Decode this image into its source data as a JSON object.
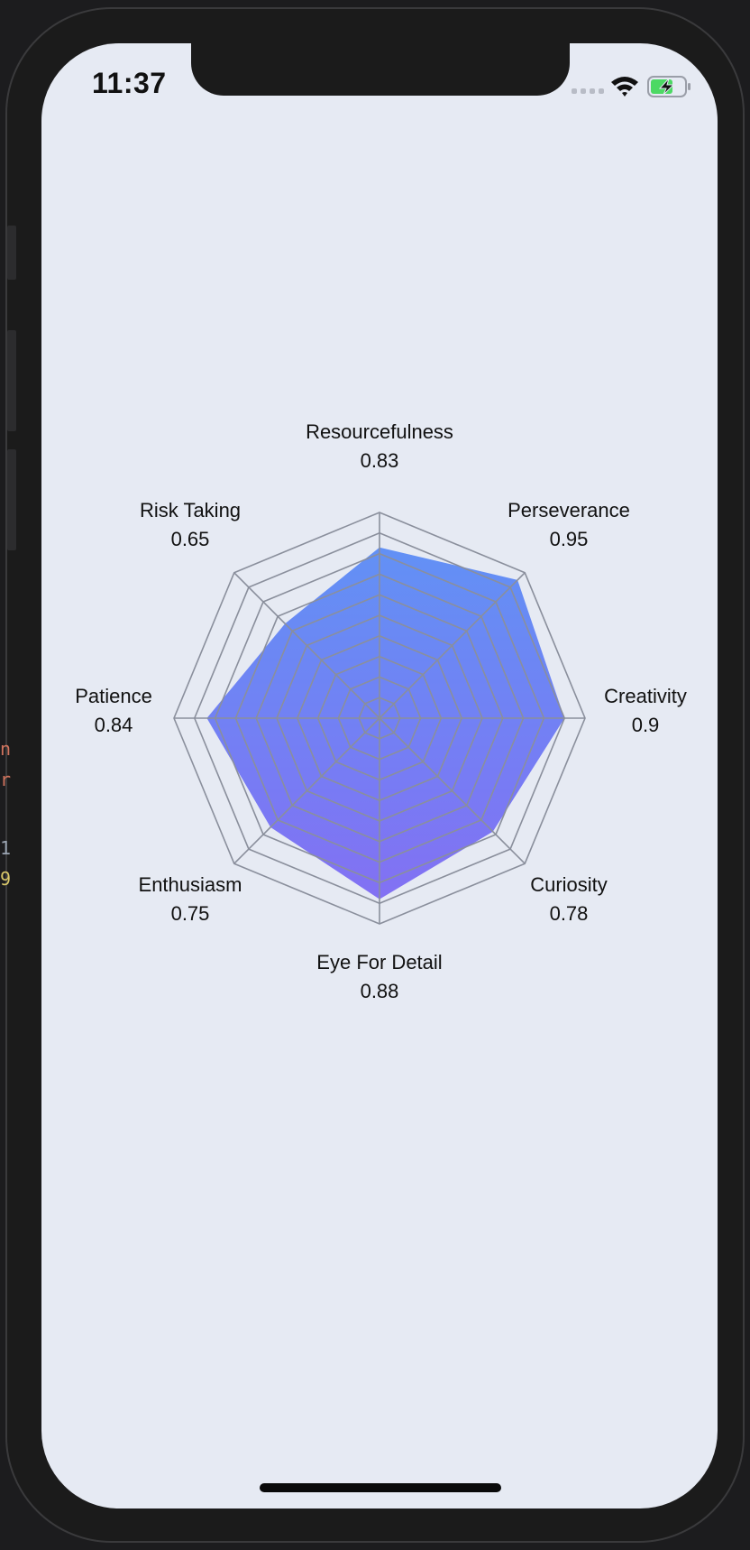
{
  "status_bar": {
    "time": "11:37",
    "icons": [
      "cellular-dots-icon",
      "wifi-icon",
      "battery-charging-icon"
    ]
  },
  "colors": {
    "screen_bg": "#e6eaf3",
    "grid": "#8a8f9c",
    "fill_top": "#5b8cf5",
    "fill_bottom": "#7d6af3",
    "battery_fill": "#4cd964"
  },
  "background_text": [
    "n",
    "r",
    "1",
    "9"
  ],
  "chart_data": {
    "type": "radar",
    "max": 1,
    "rings": 10,
    "axes": [
      {
        "label": "Resourcefulness",
        "value_text": "0.83",
        "value": 0.83
      },
      {
        "label": "Perseverance",
        "value_text": "0.95",
        "value": 0.95
      },
      {
        "label": "Creativity",
        "value_text": "0.9",
        "value": 0.9
      },
      {
        "label": "Curiosity",
        "value_text": "0.78",
        "value": 0.78
      },
      {
        "label": "Eye For Detail",
        "value_text": "0.88",
        "value": 0.88
      },
      {
        "label": "Enthusiasm",
        "value_text": "0.75",
        "value": 0.75
      },
      {
        "label": "Patience",
        "value_text": "0.84",
        "value": 0.84
      },
      {
        "label": "Risk Taking",
        "value_text": "0.65",
        "value": 0.65
      }
    ]
  }
}
